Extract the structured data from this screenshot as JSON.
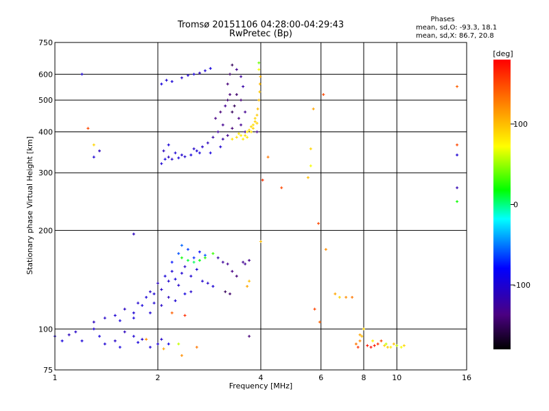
{
  "chart_data": {
    "type": "scatter",
    "title": "Tromsø 20151106 04:28:00-04:29:43",
    "subtitle": "RwPretec (Bp)",
    "xlabel": "Frequency [MHz]",
    "ylabel": "Stationary phase Virtual Height [km]",
    "x_scale": "log",
    "y_scale": "log",
    "xlim": [
      1,
      16
    ],
    "ylim": [
      75,
      750
    ],
    "x_ticks": [
      1,
      2,
      4,
      6,
      8,
      10,
      16
    ],
    "x_tick_labels": [
      "1",
      "2",
      "4",
      "6",
      "8",
      "10",
      "16"
    ],
    "y_ticks": [
      75,
      100,
      200,
      300,
      400,
      500,
      600,
      750
    ],
    "y_tick_labels": [
      "75",
      "100",
      "200",
      "300",
      "400",
      "500",
      "600",
      "750"
    ],
    "grid": true,
    "legend": {
      "title": "Phases",
      "lines": [
        "mean, sd,O: -93.3, 18.1",
        "mean, sd,X: 86.7, 20.8"
      ],
      "placement": "top-right"
    },
    "colorbar": {
      "label": "[deg]",
      "range": [
        -180,
        180
      ],
      "ticks": [
        100,
        0,
        -100
      ],
      "tick_labels": [
        "100",
        "0",
        "-100"
      ],
      "colors": [
        "#000000",
        "#4b0082",
        "#0000ff",
        "#00ffff",
        "#00ff00",
        "#ffff00",
        "#ff8000",
        "#ff0000"
      ]
    },
    "series": [
      {
        "marker": "+",
        "points": [
          [
            2.05,
            560
          ],
          [
            2.12,
            575
          ],
          [
            2.2,
            570
          ],
          [
            2.35,
            585
          ],
          [
            2.45,
            595
          ],
          [
            2.55,
            600
          ],
          [
            2.65,
            605
          ],
          [
            2.75,
            615
          ],
          [
            2.85,
            625
          ],
          [
            2.05,
            320
          ],
          [
            2.1,
            330
          ],
          [
            2.15,
            335
          ],
          [
            2.2,
            330
          ],
          [
            2.3,
            333
          ],
          [
            2.4,
            336
          ],
          [
            2.5,
            340
          ],
          [
            2.6,
            350
          ],
          [
            2.7,
            360
          ],
          [
            2.8,
            370
          ],
          [
            2.9,
            385
          ],
          [
            3.0,
            400
          ],
          [
            3.1,
            420
          ],
          [
            2.95,
            440
          ],
          [
            3.05,
            460
          ],
          [
            3.15,
            480
          ],
          [
            3.2,
            500
          ],
          [
            3.25,
            520
          ],
          [
            3.05,
            360
          ],
          [
            2.85,
            345
          ],
          [
            2.55,
            355
          ],
          [
            2.25,
            345
          ],
          [
            2.08,
            350
          ],
          [
            2.15,
            365
          ],
          [
            2.35,
            340
          ],
          [
            2.65,
            345
          ],
          [
            3.2,
            560
          ],
          [
            3.25,
            600
          ],
          [
            3.3,
            640
          ],
          [
            3.4,
            620
          ],
          [
            3.5,
            590
          ],
          [
            3.55,
            550
          ],
          [
            3.35,
            480
          ],
          [
            3.45,
            440
          ],
          [
            3.5,
            420
          ],
          [
            3.6,
            400
          ],
          [
            3.3,
            410
          ],
          [
            3.2,
            390
          ],
          [
            3.1,
            380
          ],
          [
            3.4,
            520
          ],
          [
            3.5,
            500
          ],
          [
            3.6,
            460
          ],
          [
            3.3,
            460
          ],
          [
            1.0,
            95
          ],
          [
            1.05,
            92
          ],
          [
            1.1,
            96
          ],
          [
            1.15,
            98
          ],
          [
            1.2,
            92
          ],
          [
            1.3,
            100
          ],
          [
            1.35,
            95
          ],
          [
            1.4,
            90
          ],
          [
            1.5,
            92
          ],
          [
            1.55,
            88
          ],
          [
            1.6,
            98
          ],
          [
            1.7,
            95
          ],
          [
            1.75,
            91
          ],
          [
            1.8,
            93
          ],
          [
            1.9,
            88
          ],
          [
            2.0,
            90
          ],
          [
            2.05,
            93
          ],
          [
            2.15,
            90
          ],
          [
            1.3,
            105
          ],
          [
            1.4,
            108
          ],
          [
            1.5,
            110
          ],
          [
            1.55,
            106
          ],
          [
            1.6,
            115
          ],
          [
            1.7,
            112
          ],
          [
            1.75,
            120
          ],
          [
            1.8,
            118
          ],
          [
            1.85,
            125
          ],
          [
            1.9,
            130
          ],
          [
            1.95,
            128
          ],
          [
            2.0,
            138
          ],
          [
            2.05,
            132
          ],
          [
            2.1,
            145
          ],
          [
            2.15,
            140
          ],
          [
            2.2,
            150
          ],
          [
            2.25,
            142
          ],
          [
            2.3,
            136
          ],
          [
            2.35,
            148
          ],
          [
            2.4,
            155
          ],
          [
            2.5,
            145
          ],
          [
            2.6,
            152
          ],
          [
            2.7,
            140
          ],
          [
            2.8,
            138
          ],
          [
            2.9,
            135
          ],
          [
            2.2,
            160
          ],
          [
            2.3,
            170
          ],
          [
            2.35,
            180
          ],
          [
            2.45,
            175
          ],
          [
            2.55,
            165
          ],
          [
            2.65,
            172
          ],
          [
            2.75,
            168
          ],
          [
            1.95,
            120
          ],
          [
            2.05,
            118
          ],
          [
            2.15,
            125
          ],
          [
            2.25,
            122
          ],
          [
            2.4,
            128
          ],
          [
            2.5,
            130
          ],
          [
            1.7,
            108
          ],
          [
            1.9,
            112
          ],
          [
            3.0,
            165
          ],
          [
            3.1,
            160
          ],
          [
            3.2,
            158
          ],
          [
            3.3,
            150
          ],
          [
            3.4,
            145
          ],
          [
            3.55,
            160
          ],
          [
            3.6,
            158
          ],
          [
            3.7,
            162
          ],
          [
            3.15,
            130
          ],
          [
            3.25,
            128
          ],
          [
            3.7,
            95
          ],
          [
            1.2,
            600
          ],
          [
            3.9,
            400
          ],
          [
            1.7,
            195
          ],
          [
            1.3,
            335
          ],
          [
            1.35,
            350
          ],
          [
            15.0,
            270
          ],
          [
            15.0,
            340
          ]
        ],
        "phases": [
          -95,
          -100,
          -98,
          -105,
          -102,
          -97,
          -110,
          -100,
          -95,
          -100,
          -95,
          -110,
          -105,
          -98,
          -102,
          -96,
          -100,
          -105,
          -110,
          -120,
          -125,
          -130,
          -135,
          -140,
          -130,
          -145,
          -140,
          -100,
          -95,
          -105,
          -100,
          -110,
          -98,
          -102,
          -96,
          -140,
          -145,
          -150,
          -130,
          -125,
          -120,
          -150,
          -135,
          -130,
          -125,
          -140,
          -130,
          -120,
          -145,
          -140,
          -130,
          -150,
          -100,
          -95,
          -110,
          -105,
          -98,
          -102,
          -96,
          -100,
          -105,
          -95,
          -110,
          -100,
          -96,
          -104,
          -98,
          -100,
          -105,
          -92,
          -110,
          -105,
          -100,
          -95,
          -108,
          -100,
          -102,
          -96,
          -98,
          -104,
          -100,
          -110,
          -105,
          -98,
          -102,
          -100,
          -96,
          -104,
          -100,
          -106,
          -100,
          -98,
          -102,
          -104,
          -100,
          -75,
          -60,
          -55,
          -65,
          -70,
          -80,
          -60,
          -100,
          -105,
          -110,
          -100,
          -95,
          -102,
          -96,
          -100,
          -120,
          -125,
          -130,
          -135,
          -140,
          -130,
          -128,
          -132,
          -150,
          -145,
          -140,
          -100,
          -130,
          -110,
          -100,
          -110,
          -115,
          -100
        ]
      },
      {
        "marker": "+",
        "points": [
          [
            3.55,
            380
          ],
          [
            3.6,
            390
          ],
          [
            3.65,
            400
          ],
          [
            3.7,
            405
          ],
          [
            3.75,
            415
          ],
          [
            3.8,
            420
          ],
          [
            3.85,
            430
          ],
          [
            3.9,
            450
          ],
          [
            3.92,
            470
          ],
          [
            3.95,
            500
          ],
          [
            3.97,
            530
          ],
          [
            3.98,
            560
          ],
          [
            3.99,
            590
          ],
          [
            3.85,
            440
          ],
          [
            3.75,
            400
          ],
          [
            3.65,
            385
          ],
          [
            3.5,
            390
          ],
          [
            3.45,
            395
          ],
          [
            3.4,
            385
          ],
          [
            3.3,
            380
          ],
          [
            3.8,
            410
          ],
          [
            3.9,
            425
          ],
          [
            3.95,
            620
          ],
          [
            3.95,
            650
          ],
          [
            2.35,
            165
          ],
          [
            2.45,
            162
          ],
          [
            2.55,
            160
          ],
          [
            2.65,
            162
          ],
          [
            2.75,
            165
          ],
          [
            2.9,
            170
          ],
          [
            2.2,
            112
          ],
          [
            2.4,
            110
          ],
          [
            2.3,
            90
          ],
          [
            2.35,
            83
          ],
          [
            3.65,
            135
          ],
          [
            3.7,
            140
          ],
          [
            7.6,
            90
          ],
          [
            7.7,
            88
          ],
          [
            7.8,
            92
          ],
          [
            7.9,
            95
          ],
          [
            8.0,
            100
          ],
          [
            8.2,
            89
          ],
          [
            8.4,
            88
          ],
          [
            8.6,
            89
          ],
          [
            8.8,
            90
          ],
          [
            9.0,
            92
          ],
          [
            9.2,
            89
          ],
          [
            9.4,
            88
          ],
          [
            9.6,
            88
          ],
          [
            9.8,
            90
          ],
          [
            10.0,
            89
          ],
          [
            10.3,
            88
          ],
          [
            10.5,
            89
          ],
          [
            7.8,
            96
          ],
          [
            8.5,
            92
          ],
          [
            9.3,
            90
          ],
          [
            1.25,
            410
          ],
          [
            1.3,
            365
          ],
          [
            5.5,
            290
          ],
          [
            5.6,
            315
          ],
          [
            4.2,
            335
          ],
          [
            5.7,
            470
          ],
          [
            5.9,
            210
          ],
          [
            6.2,
            175
          ],
          [
            5.95,
            105
          ],
          [
            6.6,
            128
          ],
          [
            7.4,
            125
          ],
          [
            6.8,
            125
          ],
          [
            7.1,
            125
          ],
          [
            5.75,
            115
          ],
          [
            4.05,
            285
          ],
          [
            4.6,
            270
          ],
          [
            5.6,
            355
          ],
          [
            15.0,
            550
          ],
          [
            15.0,
            365
          ],
          [
            15.0,
            245
          ],
          [
            4.0,
            185
          ],
          [
            1.85,
            93
          ],
          [
            2.08,
            87
          ],
          [
            2.6,
            88
          ],
          [
            6.1,
            520
          ]
        ],
        "phases": [
          80,
          85,
          82,
          88,
          90,
          86,
          92,
          95,
          100,
          98,
          96,
          102,
          105,
          90,
          88,
          84,
          80,
          82,
          86,
          84,
          90,
          92,
          70,
          40,
          20,
          10,
          5,
          15,
          25,
          30,
          140,
          160,
          60,
          120,
          110,
          100,
          130,
          160,
          120,
          100,
          90,
          170,
          175,
          170,
          160,
          150,
          90,
          95,
          80,
          100,
          60,
          70,
          90,
          110,
          80,
          60,
          150,
          90,
          100,
          70,
          130,
          110,
          150,
          120,
          140,
          110,
          130,
          90,
          120,
          150,
          160,
          150,
          90,
          140,
          150,
          20,
          100,
          120,
          110,
          130,
          150
        ]
      }
    ]
  }
}
